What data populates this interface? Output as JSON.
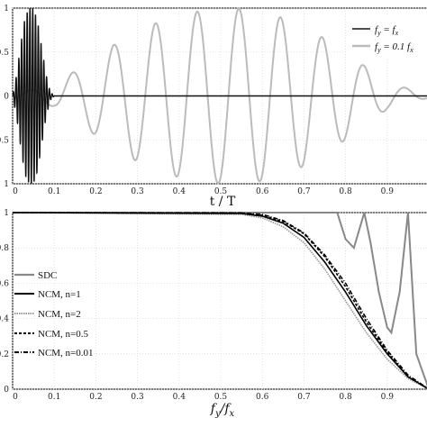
{
  "chart_data": [
    {
      "type": "line",
      "xlabel": "t / T",
      "ylabel": "",
      "xlim": [
        0,
        1
      ],
      "ylim": [
        -1,
        1
      ],
      "x_ticks": [
        "0",
        "0.1",
        "0.2",
        "0.3",
        "0.4",
        "0.5",
        "0.6",
        "0.7",
        "0.8",
        "0.9"
      ],
      "y_ticks": [
        "1",
        "0.5",
        "0",
        "0.5",
        "1"
      ],
      "legend_position": "top-right",
      "series": [
        {
          "name": "fy = fx",
          "color": "#111111",
          "description_points": {
            "t": [
              0.0,
              0.01,
              0.02,
              0.03,
              0.04,
              0.05,
              0.06,
              0.07,
              0.08,
              0.09,
              0.1,
              0.5,
              1.0
            ],
            "envelope": [
              0.0,
              0.25,
              0.6,
              0.9,
              1.0,
              1.0,
              0.85,
              0.55,
              0.25,
              0.05,
              0.0,
              0.0,
              0.0
            ]
          }
        },
        {
          "name": "fy = 0.1 fx",
          "color": "#bbbbbb",
          "description_points": {
            "t": [
              0.0,
              0.1,
              0.2,
              0.3,
              0.4,
              0.5,
              0.53,
              0.6,
              0.7,
              0.8,
              0.9,
              1.0
            ],
            "envelope": [
              0.03,
              0.12,
              0.45,
              0.75,
              0.93,
              1.0,
              1.0,
              0.97,
              0.8,
              0.5,
              0.15,
              0.02
            ]
          }
        }
      ]
    },
    {
      "type": "line",
      "xlabel": "fy/fx",
      "ylabel": "",
      "xlim": [
        0,
        1
      ],
      "ylim": [
        0,
        1
      ],
      "x_ticks": [
        "0",
        "0.1",
        "0.2",
        "0.3",
        "0.4",
        "0.5",
        "0.6",
        "0.7",
        "0.8",
        "0.9"
      ],
      "y_ticks": [
        "1",
        "0.8",
        "0.6",
        "0.4",
        "0.2",
        "0"
      ],
      "legend_position": "left",
      "series": [
        {
          "name": "SDC",
          "color": "#888888",
          "x": [
            0.0,
            0.5,
            0.6,
            0.65,
            0.7,
            0.75,
            0.78,
            0.8,
            0.82,
            0.845,
            0.86,
            0.88,
            0.9,
            0.91,
            0.93,
            0.95,
            0.97,
            1.0
          ],
          "y": [
            1.0,
            1.0,
            1.0,
            1.0,
            1.0,
            1.0,
            1.0,
            0.85,
            0.8,
            1.0,
            0.83,
            0.55,
            0.35,
            0.32,
            0.55,
            1.0,
            0.2,
            0.0
          ]
        },
        {
          "name": "NCM, n=1",
          "color": "#000000",
          "x": [
            0.0,
            0.55,
            0.6,
            0.65,
            0.7,
            0.75,
            0.8,
            0.85,
            0.9,
            0.95,
            1.0
          ],
          "y": [
            1.0,
            0.995,
            0.98,
            0.94,
            0.86,
            0.72,
            0.55,
            0.36,
            0.2,
            0.07,
            0.0
          ]
        },
        {
          "name": "NCM, n=2",
          "color": "#999999",
          "x": [
            0.0,
            0.55,
            0.6,
            0.65,
            0.7,
            0.75,
            0.8,
            0.85,
            0.9,
            0.95,
            1.0
          ],
          "y": [
            1.0,
            0.99,
            0.97,
            0.92,
            0.83,
            0.68,
            0.5,
            0.32,
            0.17,
            0.06,
            0.0
          ]
        },
        {
          "name": "NCM, n=0.5",
          "color": "#000000",
          "x": [
            0.0,
            0.55,
            0.6,
            0.65,
            0.7,
            0.75,
            0.8,
            0.85,
            0.9,
            0.95,
            1.0
          ],
          "y": [
            1.0,
            0.997,
            0.985,
            0.95,
            0.88,
            0.75,
            0.58,
            0.38,
            0.21,
            0.07,
            0.0
          ]
        },
        {
          "name": "NCM, n=0.01",
          "color": "#000000",
          "x": [
            0.0,
            0.55,
            0.6,
            0.65,
            0.7,
            0.75,
            0.8,
            0.85,
            0.9,
            0.95,
            1.0
          ],
          "y": [
            1.0,
            0.998,
            0.99,
            0.955,
            0.885,
            0.76,
            0.6,
            0.4,
            0.22,
            0.08,
            0.0
          ]
        }
      ]
    }
  ]
}
